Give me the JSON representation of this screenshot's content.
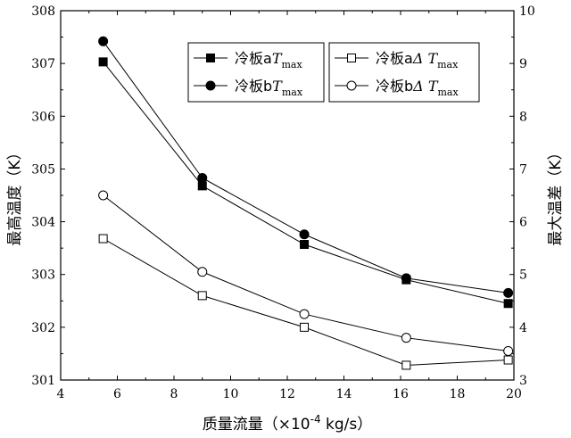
{
  "chart_data": {
    "type": "line",
    "xlabel": "质量流量（×10",
    "xlabel_exp": "-4",
    "xlabel_unit": " kg/s）",
    "ylabel_left": "最高温度（K）",
    "ylabel_right": "最大温差（K）",
    "xlim": [
      4,
      20
    ],
    "ylim_left": [
      301,
      308
    ],
    "ylim_right": [
      3,
      10
    ],
    "x_ticks": [
      4,
      6,
      8,
      10,
      12,
      14,
      16,
      18,
      20
    ],
    "y_left_ticks": [
      301,
      302,
      303,
      304,
      305,
      306,
      307,
      308
    ],
    "y_right_ticks": [
      3,
      4,
      5,
      6,
      7,
      8,
      9,
      10
    ],
    "legend_placement": "top-right",
    "series": [
      {
        "name_main": "冷板a",
        "name_var": "T",
        "name_sub": "max",
        "axis": "left",
        "marker": "square",
        "filled": true,
        "x": [
          5.5,
          9.0,
          12.6,
          16.2,
          19.8
        ],
        "values": [
          307.03,
          304.68,
          303.57,
          302.9,
          302.45
        ]
      },
      {
        "name_main": "冷板b",
        "name_var": "T",
        "name_sub": "max",
        "axis": "left",
        "marker": "circle",
        "filled": true,
        "x": [
          5.5,
          9.0,
          12.6,
          16.2,
          19.8
        ],
        "values": [
          307.42,
          304.83,
          303.76,
          302.93,
          302.65
        ]
      },
      {
        "name_main": "冷板a",
        "name_var": "Δ T",
        "name_sub": "max",
        "axis": "right",
        "marker": "square",
        "filled": false,
        "x": [
          5.5,
          9.0,
          12.6,
          16.2,
          19.8
        ],
        "values": [
          5.68,
          4.6,
          4.0,
          3.28,
          3.38
        ]
      },
      {
        "name_main": "冷板b",
        "name_var": "Δ T",
        "name_sub": "max",
        "axis": "right",
        "marker": "circle",
        "filled": false,
        "x": [
          5.5,
          9.0,
          12.6,
          16.2,
          19.8
        ],
        "values": [
          6.5,
          5.05,
          4.25,
          3.8,
          3.55
        ]
      }
    ]
  }
}
